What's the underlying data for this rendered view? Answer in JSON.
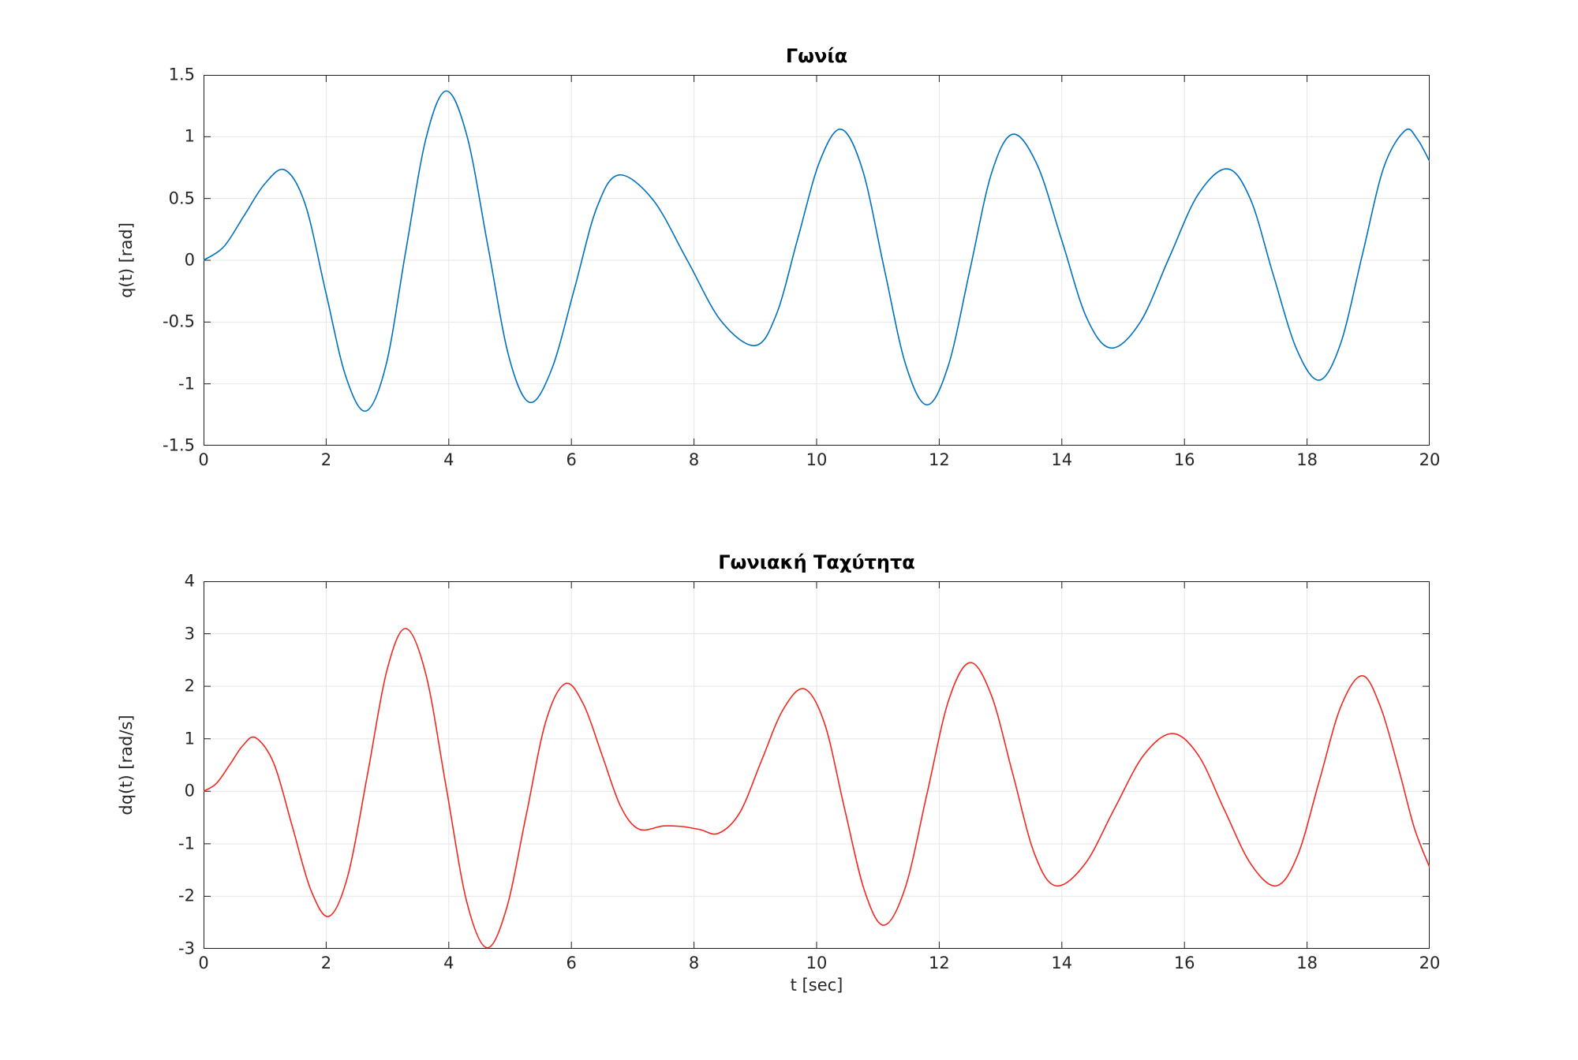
{
  "figure": {
    "background_color": "#ffffff",
    "axis_color": "#1f1f1f",
    "grid_color": "#e6e6e6",
    "tick_label_color": "#262626"
  },
  "chart_data": [
    {
      "type": "line",
      "title": "Γωνία",
      "xlabel": "",
      "ylabel": "q(t) [rad]",
      "xlim": [
        0,
        20
      ],
      "ylim": [
        -1.5,
        1.5
      ],
      "xticks": [
        0,
        2,
        4,
        6,
        8,
        10,
        12,
        14,
        16,
        18,
        20
      ],
      "yticks": [
        -1.5,
        -1,
        -0.5,
        0,
        0.5,
        1,
        1.5
      ],
      "grid": true,
      "legend": "none",
      "line_color": "#0072bd",
      "series": [
        {
          "name": "q(t)",
          "points": [
            [
              0,
              0
            ],
            [
              0.33,
              0.11
            ],
            [
              0.66,
              0.36
            ],
            [
              1,
              0.62
            ],
            [
              1.33,
              0.73
            ],
            [
              1.66,
              0.45
            ],
            [
              1.99,
              -0.25
            ],
            [
              2.32,
              -0.94
            ],
            [
              2.65,
              -1.22
            ],
            [
              2.98,
              -0.84
            ],
            [
              3.3,
              0.08
            ],
            [
              3.63,
              0.99
            ],
            [
              3.96,
              1.37
            ],
            [
              4.3,
              1
            ],
            [
              4.64,
              0.11
            ],
            [
              4.98,
              -0.78
            ],
            [
              5.32,
              -1.15
            ],
            [
              5.68,
              -0.88
            ],
            [
              6.05,
              -0.23
            ],
            [
              6.41,
              0.42
            ],
            [
              6.77,
              0.69
            ],
            [
              7.33,
              0.49
            ],
            [
              7.89,
              0
            ],
            [
              8.44,
              -0.49
            ],
            [
              9,
              -0.69
            ],
            [
              9.35,
              -0.43
            ],
            [
              9.7,
              0.19
            ],
            [
              10.05,
              0.8
            ],
            [
              10.4,
              1.06
            ],
            [
              10.75,
              0.73
            ],
            [
              11.1,
              -0.06
            ],
            [
              11.45,
              -0.84
            ],
            [
              11.8,
              -1.17
            ],
            [
              12.15,
              -0.85
            ],
            [
              12.5,
              -0.08
            ],
            [
              12.85,
              0.7
            ],
            [
              13.2,
              1.02
            ],
            [
              13.6,
              0.77
            ],
            [
              14,
              0.16
            ],
            [
              14.4,
              -0.46
            ],
            [
              14.8,
              -0.71
            ],
            [
              15.28,
              -0.5
            ],
            [
              15.75,
              0.02
            ],
            [
              16.22,
              0.53
            ],
            [
              16.7,
              0.74
            ],
            [
              17.08,
              0.49
            ],
            [
              17.45,
              -0.12
            ],
            [
              17.83,
              -0.72
            ],
            [
              18.2,
              -0.97
            ],
            [
              18.55,
              -0.67
            ],
            [
              18.9,
              0.04
            ],
            [
              19.25,
              0.75
            ],
            [
              19.6,
              1.05
            ],
            [
              19.8,
              0.98
            ],
            [
              20,
              0.8
            ]
          ]
        }
      ]
    },
    {
      "type": "line",
      "title": "Γωνιακή Ταχύτητα",
      "xlabel": "t [sec]",
      "ylabel": "dq(t) [rad/s]",
      "xlim": [
        0,
        20
      ],
      "ylim": [
        -3,
        4
      ],
      "xticks": [
        0,
        2,
        4,
        6,
        8,
        10,
        12,
        14,
        16,
        18,
        20
      ],
      "yticks": [
        -3,
        -2,
        -1,
        0,
        1,
        2,
        3,
        4
      ],
      "grid": true,
      "legend": "none",
      "line_color": "#f02820",
      "series": [
        {
          "name": "dq(t)",
          "points": [
            [
              0,
              0
            ],
            [
              0.21,
              0.15
            ],
            [
              0.43,
              0.51
            ],
            [
              0.64,
              0.87
            ],
            [
              0.85,
              1.02
            ],
            [
              1.15,
              0.52
            ],
            [
              1.45,
              -0.68
            ],
            [
              1.75,
              -1.88
            ],
            [
              2.05,
              -2.38
            ],
            [
              2.36,
              -1.58
            ],
            [
              2.68,
              0.36
            ],
            [
              2.99,
              2.3
            ],
            [
              3.3,
              3.1
            ],
            [
              3.63,
              2.21
            ],
            [
              3.96,
              0.06
            ],
            [
              4.29,
              -2.09
            ],
            [
              4.62,
              -2.98
            ],
            [
              4.94,
              -2.24
            ],
            [
              5.26,
              -0.47
            ],
            [
              5.58,
              1.32
            ],
            [
              5.9,
              2.05
            ],
            [
              6.2,
              1.65
            ],
            [
              6.5,
              0.69
            ],
            [
              6.8,
              -0.28
            ],
            [
              7.1,
              -0.72
            ],
            [
              7.5,
              -0.66
            ],
            [
              7.8,
              -0.67
            ],
            [
              8.1,
              -0.73
            ],
            [
              8.4,
              -0.8
            ],
            [
              8.75,
              -0.4
            ],
            [
              9.1,
              0.58
            ],
            [
              9.45,
              1.55
            ],
            [
              9.8,
              1.95
            ],
            [
              10.13,
              1.29
            ],
            [
              10.45,
              -0.3
            ],
            [
              10.78,
              -1.89
            ],
            [
              11.1,
              -2.55
            ],
            [
              11.45,
              -1.82
            ],
            [
              11.8,
              -0.05
            ],
            [
              12.15,
              1.72
            ],
            [
              12.5,
              2.45
            ],
            [
              12.85,
              1.83
            ],
            [
              13.2,
              0.33
            ],
            [
              13.55,
              -1.18
            ],
            [
              13.9,
              -1.8
            ],
            [
              14.38,
              -1.38
            ],
            [
              14.85,
              -0.35
            ],
            [
              15.33,
              0.68
            ],
            [
              15.8,
              1.1
            ],
            [
              16.23,
              0.68
            ],
            [
              16.65,
              -0.35
            ],
            [
              17.08,
              -1.38
            ],
            [
              17.5,
              -1.8
            ],
            [
              17.85,
              -1.21
            ],
            [
              18.2,
              0.2
            ],
            [
              18.55,
              1.61
            ],
            [
              18.9,
              2.2
            ],
            [
              19.2,
              1.6
            ],
            [
              19.5,
              0.4
            ],
            [
              19.75,
              -0.7
            ],
            [
              20,
              -1.45
            ]
          ]
        }
      ]
    }
  ]
}
